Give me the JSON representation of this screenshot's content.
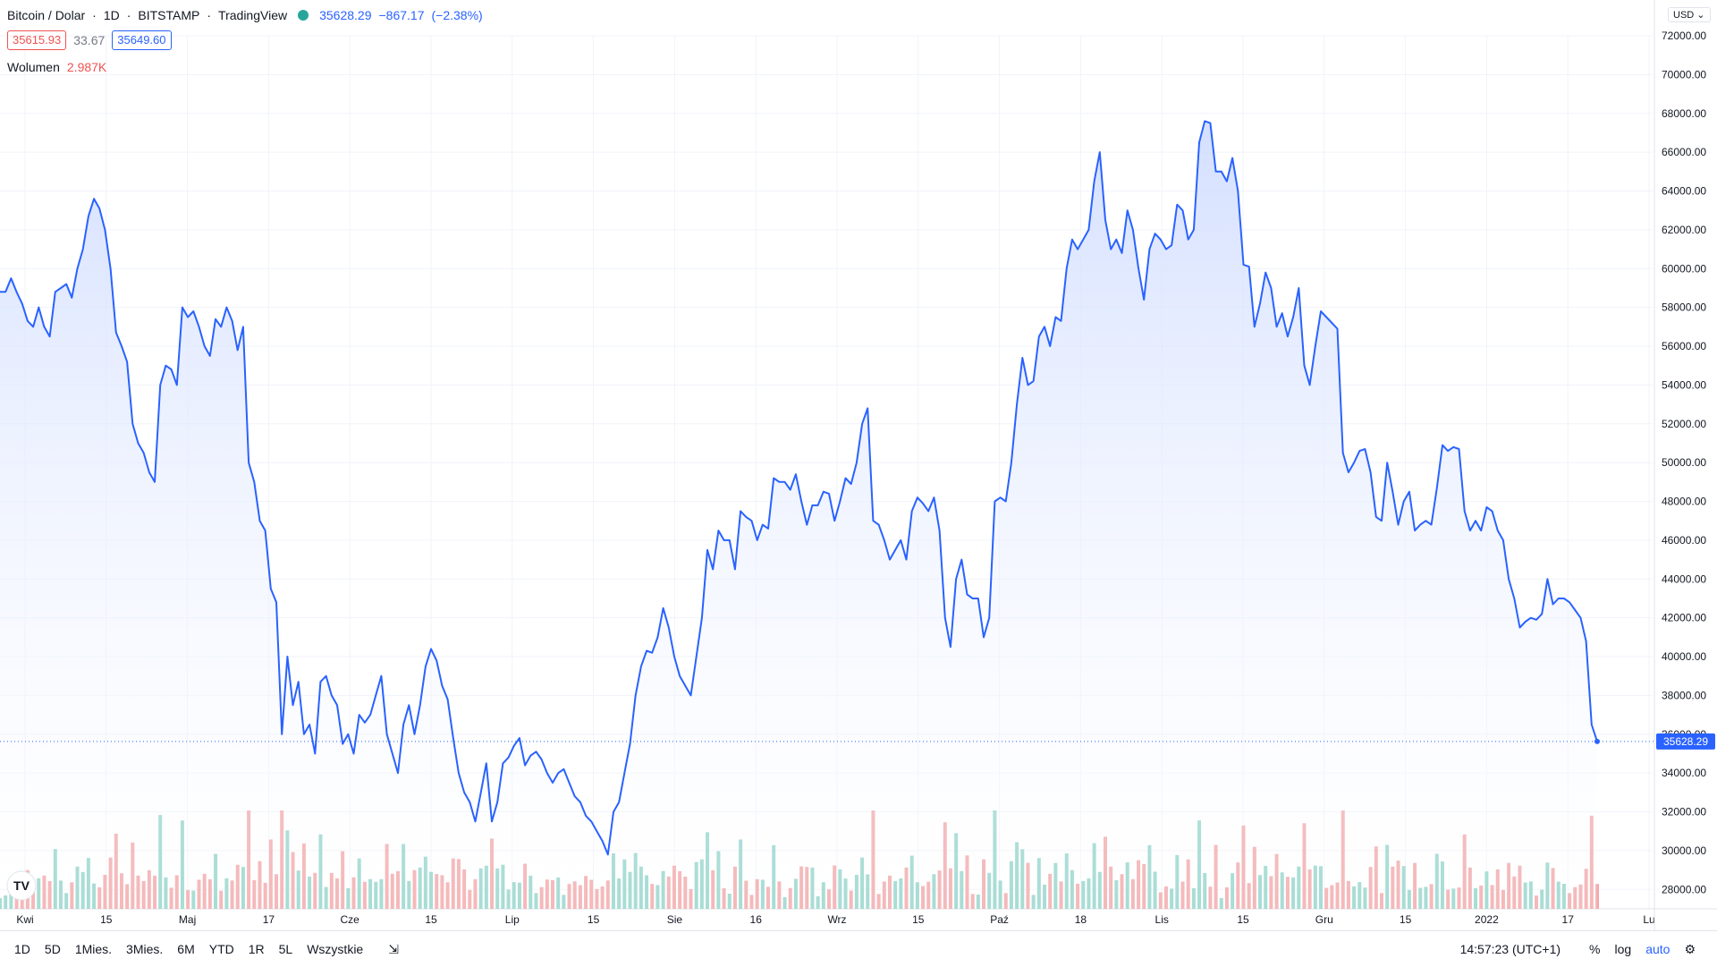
{
  "header": {
    "symbol": "Bitcoin / Dolar",
    "interval": "1D",
    "exchange": "BITSTAMP",
    "source": "TradingView",
    "last_price": "35628.29",
    "change": "−867.17",
    "change_pct": "(−2.38%)",
    "bid": "35615.93",
    "spread": "33.67",
    "ask": "35649.60",
    "volume_label": "Wolumen",
    "volume_value": "2.987K",
    "currency": "USD"
  },
  "colors": {
    "line": "#2962ff",
    "area_top": "#cfdcff",
    "area_bottom": "#ffffff",
    "vol_up": "#86cfc4",
    "vol_down": "#f19da0",
    "price_tag": "#2962ff",
    "grid": "#f0f3fa"
  },
  "chart_data": {
    "type": "area",
    "title": "Bitcoin / Dolar · 1D · BITSTAMP",
    "xlabel": "",
    "ylabel": "",
    "ylim": [
      27000,
      72000
    ],
    "y_ticks": [
      "28000.00",
      "30000.00",
      "32000.00",
      "34000.00",
      "36000.00",
      "38000.00",
      "40000.00",
      "42000.00",
      "44000.00",
      "46000.00",
      "48000.00",
      "50000.00",
      "52000.00",
      "54000.00",
      "56000.00",
      "58000.00",
      "60000.00",
      "62000.00",
      "64000.00",
      "66000.00",
      "68000.00",
      "70000.00",
      "72000.00"
    ],
    "x_ticks": [
      "Kwi",
      "15",
      "Maj",
      "17",
      "Cze",
      "15",
      "Lip",
      "15",
      "Sie",
      "16",
      "Wrz",
      "15",
      "Paź",
      "18",
      "Lis",
      "15",
      "Gru",
      "15",
      "2022",
      "17",
      "Lu"
    ],
    "last_value_label": "35628.29",
    "series": [
      {
        "values": [
          58800,
          58800,
          59500,
          58800,
          58200,
          57300,
          57000,
          58000,
          57000,
          56500,
          58800,
          59000,
          59200,
          58500,
          60000,
          61000,
          62700,
          63600,
          63100,
          62000,
          60000,
          56700,
          56000,
          55200,
          52000,
          51000,
          50500,
          49500,
          49000,
          54000,
          55000,
          54800,
          54000,
          58000,
          57500,
          57800,
          57000,
          56000,
          55500,
          57400,
          57000,
          58000,
          57300,
          55800,
          57000,
          50000,
          49000,
          47000,
          46500,
          43500,
          42800,
          36000,
          40000,
          37500,
          38700,
          36000,
          36500,
          35000,
          38700,
          39000,
          38000,
          37500,
          35500,
          36000,
          35000,
          37000,
          36600,
          37000,
          38000,
          39000,
          36000,
          35000,
          34000,
          36500,
          37500,
          36000,
          37500,
          39500,
          40400,
          39800,
          38500,
          37800,
          35800,
          34000,
          33000,
          32500,
          31500,
          33000,
          34500,
          31500,
          32500,
          34500,
          34800,
          35400,
          35800,
          34400,
          34900,
          35100,
          34700,
          34000,
          33500,
          34000,
          34200,
          33500,
          32800,
          32500,
          31800,
          31500,
          31000,
          30500,
          29800,
          32000,
          32500,
          34000,
          35500,
          38000,
          39500,
          40300,
          40200,
          41000,
          42500,
          41500,
          40000,
          39000,
          38500,
          38000,
          40000,
          42000,
          45500,
          44500,
          46500,
          46000,
          46000,
          44500,
          47500,
          47200,
          47000,
          46000,
          46800,
          46600,
          49200,
          49000,
          49000,
          48600,
          49400,
          48000,
          46800,
          47800,
          47800,
          48500,
          48400,
          47000,
          48000,
          49200,
          48900,
          50000,
          52000,
          52800,
          47000,
          46800,
          46000,
          45000,
          45500,
          46000,
          45000,
          47500,
          48200,
          47900,
          47500,
          48200,
          46500,
          42000,
          40500,
          44000,
          45000,
          43200,
          43000,
          43000,
          41000,
          42000,
          48000,
          48200,
          48000,
          50000,
          53000,
          55400,
          54000,
          54200,
          56500,
          57000,
          56000,
          57500,
          57300,
          60000,
          61500,
          61000,
          61500,
          62000,
          64500,
          66000,
          62500,
          61000,
          61500,
          60800,
          63000,
          62000,
          60000,
          58400,
          61000,
          61800,
          61500,
          61000,
          61200,
          63300,
          63000,
          61500,
          62000,
          66500,
          67600,
          67500,
          65000,
          65000,
          64500,
          65700,
          64000,
          60200,
          60100,
          57000,
          58200,
          59800,
          59000,
          57000,
          57700,
          56500,
          57500,
          59000,
          55000,
          54000,
          56000,
          57800,
          57500,
          57200,
          56900,
          50500,
          49500,
          50000,
          50600,
          50700,
          49500,
          47200,
          47000,
          50000,
          48500,
          46800,
          48000,
          48500,
          46500,
          46800,
          47000,
          46800,
          48700,
          50900,
          50600,
          50800,
          50700,
          47500,
          46500,
          47000,
          46500,
          47700,
          47500,
          46500,
          46000,
          44000,
          43000,
          41500,
          41800,
          42000,
          41900,
          42200,
          44000,
          42700,
          43000,
          43000,
          42800,
          42400,
          42000,
          40800,
          36500,
          35628.29
        ]
      }
    ]
  }
}
